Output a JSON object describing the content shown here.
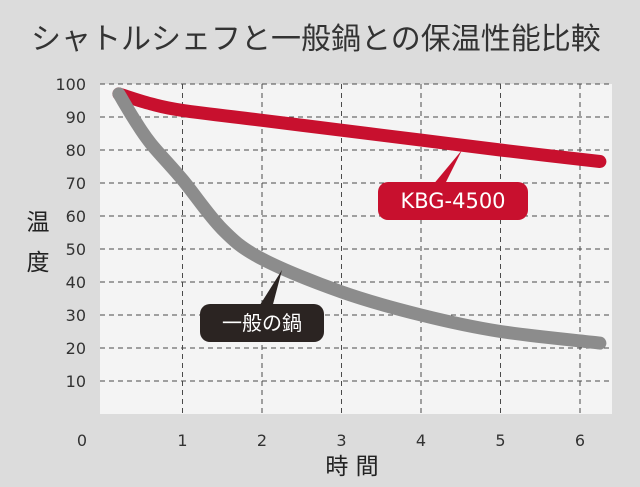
{
  "chart_data": {
    "type": "line",
    "title": "シャトルシェフと一般鍋との保温性能比較",
    "xlabel": "時 間",
    "ylabel": "温度",
    "xlim": [
      0,
      6.15
    ],
    "ylim": [
      0,
      100
    ],
    "x_ticks": [
      0,
      1,
      2,
      3,
      4,
      5,
      6
    ],
    "y_ticks": [
      10,
      20,
      30,
      40,
      50,
      60,
      70,
      80,
      90,
      100
    ],
    "grid": true,
    "series": [
      {
        "name": "KBG-4500",
        "color": "#c8102e",
        "x": [
          0.2,
          0.6,
          1.0,
          2.0,
          3.0,
          4.0,
          5.0,
          6.25
        ],
        "y": [
          97,
          94,
          92,
          89,
          86,
          83,
          80,
          76.5
        ]
      },
      {
        "name": "一般の鍋",
        "color": "#8c8c8c",
        "x": [
          0.2,
          0.4,
          0.6,
          1.0,
          1.5,
          2.0,
          3.0,
          4.0,
          5.0,
          6.25
        ],
        "y": [
          97,
          89,
          82,
          71,
          56,
          47,
          37,
          30,
          25,
          21.5
        ]
      }
    ]
  }
}
